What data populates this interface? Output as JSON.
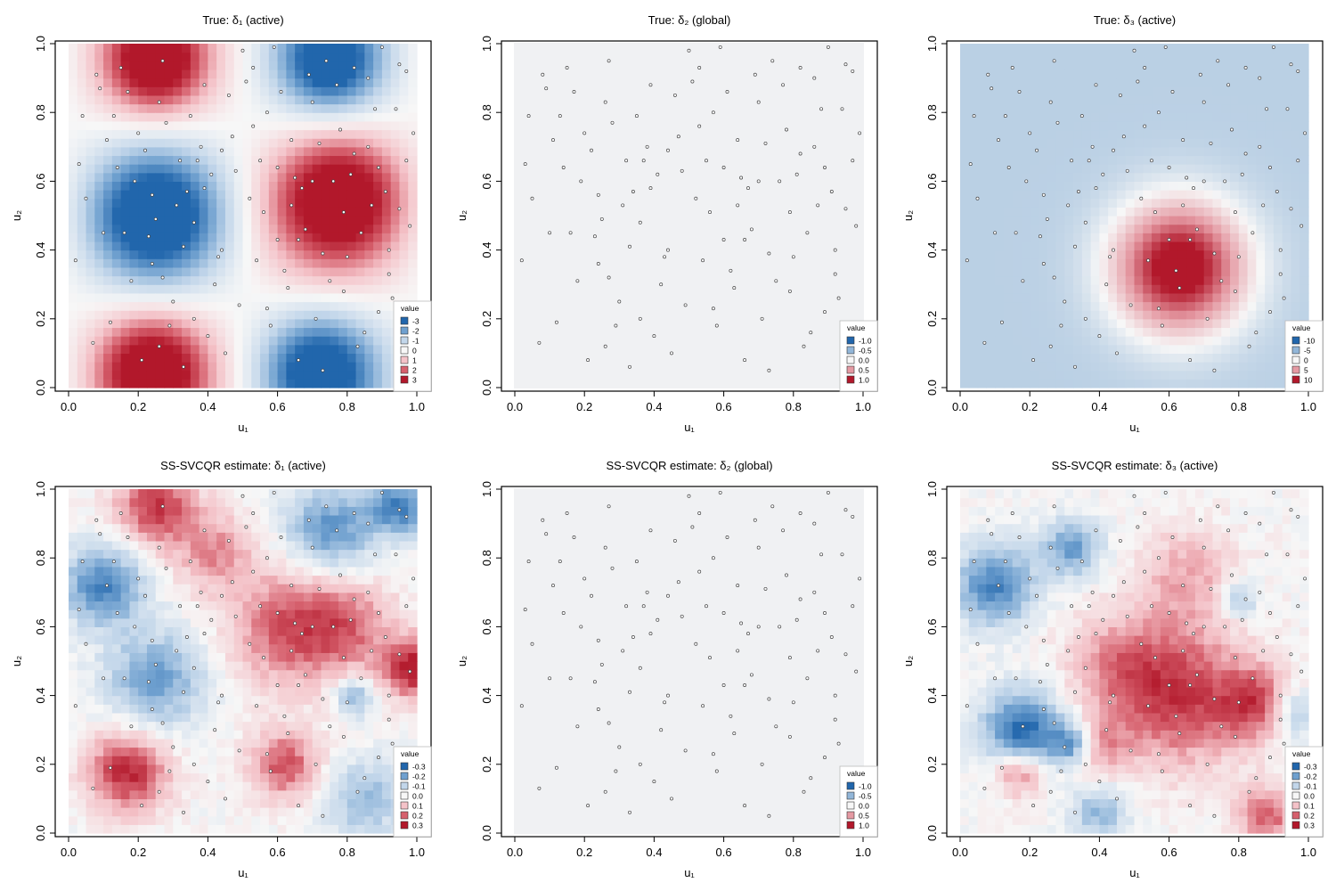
{
  "chart_data": [
    {
      "type": "heatmap",
      "title": "True:   δ₁ (active)",
      "xlabel": "u₁",
      "ylabel": "u₂",
      "xlim": [
        0,
        1
      ],
      "ylim": [
        0,
        1
      ],
      "xticks": [
        "0.0",
        "0.2",
        "0.4",
        "0.6",
        "0.8",
        "1.0"
      ],
      "yticks": [
        "0.0",
        "0.2",
        "0.4",
        "0.6",
        "0.8",
        "1.0"
      ],
      "legend": {
        "title": "value",
        "position": "bottom-right",
        "labels": [
          "-3",
          "-2",
          "-1",
          "0",
          "1",
          "2",
          "3"
        ]
      },
      "colors": [
        "#2166ac",
        "#6fa0cf",
        "#c2d6ea",
        "#f7f7f7",
        "#f4c2c8",
        "#d6606d",
        "#b2182b"
      ],
      "surface": {
        "kind": "checker",
        "amplitude": 3,
        "bumps": [
          {
            "x": 0.25,
            "y": 0.95,
            "a": 3.2,
            "s": 0.09
          },
          {
            "x": 0.78,
            "y": 0.55,
            "a": 3.2,
            "s": 0.12
          },
          {
            "x": 0.24,
            "y": 0.05,
            "a": 3.2,
            "s": 0.1
          },
          {
            "x": 0.72,
            "y": 0.05,
            "a": -3.0,
            "s": 0.1
          },
          {
            "x": 0.25,
            "y": 0.5,
            "a": -3.2,
            "s": 0.12
          },
          {
            "x": 0.75,
            "y": 0.95,
            "a": -3.0,
            "s": 0.09
          }
        ]
      }
    },
    {
      "type": "heatmap",
      "title": "True:   δ₂ (global)",
      "xlabel": "u₁",
      "ylabel": "u₂",
      "xlim": [
        0,
        1
      ],
      "ylim": [
        0,
        1
      ],
      "xticks": [
        "0.0",
        "0.2",
        "0.4",
        "0.6",
        "0.8",
        "1.0"
      ],
      "yticks": [
        "0.0",
        "0.2",
        "0.4",
        "0.6",
        "0.8",
        "1.0"
      ],
      "legend": {
        "title": "value",
        "position": "bottom-right",
        "labels": [
          "-1.0",
          "-0.5",
          "0.0",
          "0.5",
          "1.0"
        ]
      },
      "colors": [
        "#2166ac",
        "#92b6d8",
        "#f7f7f7",
        "#e59aa3",
        "#b2182b"
      ],
      "surface": {
        "kind": "constant",
        "fill": "#f0f1f3"
      }
    },
    {
      "type": "heatmap",
      "title": "True:   δ₃ (active)",
      "xlabel": "u₁",
      "ylabel": "u₂",
      "xlim": [
        0,
        1
      ],
      "ylim": [
        0,
        1
      ],
      "xticks": [
        "0.0",
        "0.2",
        "0.4",
        "0.6",
        "0.8",
        "1.0"
      ],
      "yticks": [
        "0.0",
        "0.2",
        "0.4",
        "0.6",
        "0.8",
        "1.0"
      ],
      "legend": {
        "title": "value",
        "position": "bottom-right",
        "labels": [
          "-10",
          "-5",
          "0",
          "5",
          "10"
        ]
      },
      "colors": [
        "#2166ac",
        "#92b6d8",
        "#f7f7f7",
        "#e59aa3",
        "#b2182b"
      ],
      "surface": {
        "kind": "bumps",
        "base": -3,
        "amplitude": 10,
        "bumps": [
          {
            "x": 0.63,
            "y": 0.35,
            "a": 15,
            "s": 0.13
          }
        ]
      }
    },
    {
      "type": "heatmap",
      "title": "SS-SVCQR estimate:   δ₁ (active)",
      "xlabel": "u₁",
      "ylabel": "u₂",
      "xlim": [
        0,
        1
      ],
      "ylim": [
        0,
        1
      ],
      "xticks": [
        "0.0",
        "0.2",
        "0.4",
        "0.6",
        "0.8",
        "1.0"
      ],
      "yticks": [
        "0.0",
        "0.2",
        "0.4",
        "0.6",
        "0.8",
        "1.0"
      ],
      "legend": {
        "title": "value",
        "position": "bottom-right",
        "labels": [
          "-0.3",
          "-0.2",
          "-0.1",
          "0.0",
          "0.1",
          "0.2",
          "0.3"
        ]
      },
      "colors": [
        "#2166ac",
        "#6fa0cf",
        "#c2d6ea",
        "#f7f7f7",
        "#f4c2c8",
        "#d6606d",
        "#b2182b"
      ],
      "surface": {
        "kind": "bumps",
        "base": 0,
        "amplitude": 0.3,
        "noise": 0.05,
        "bumps": [
          {
            "x": 0.25,
            "y": 0.95,
            "a": 0.25,
            "s": 0.08
          },
          {
            "x": 0.17,
            "y": 0.18,
            "a": 0.28,
            "s": 0.08
          },
          {
            "x": 0.62,
            "y": 0.2,
            "a": 0.22,
            "s": 0.07
          },
          {
            "x": 0.63,
            "y": 0.6,
            "a": 0.2,
            "s": 0.12
          },
          {
            "x": 0.99,
            "y": 0.48,
            "a": 0.3,
            "s": 0.06
          },
          {
            "x": 0.42,
            "y": 0.82,
            "a": 0.15,
            "s": 0.08
          },
          {
            "x": 0.8,
            "y": 0.6,
            "a": 0.15,
            "s": 0.1
          },
          {
            "x": 0.1,
            "y": 0.72,
            "a": -0.25,
            "s": 0.08
          },
          {
            "x": 0.25,
            "y": 0.45,
            "a": -0.2,
            "s": 0.1
          },
          {
            "x": 0.75,
            "y": 0.88,
            "a": -0.22,
            "s": 0.09
          },
          {
            "x": 0.85,
            "y": 0.1,
            "a": -0.15,
            "s": 0.08
          },
          {
            "x": 0.95,
            "y": 0.95,
            "a": -0.25,
            "s": 0.06
          },
          {
            "x": 0.82,
            "y": 0.4,
            "a": -0.18,
            "s": 0.04
          }
        ]
      }
    },
    {
      "type": "heatmap",
      "title": "SS-SVCQR estimate:   δ₂ (global)",
      "xlabel": "u₁",
      "ylabel": "u₂",
      "xlim": [
        0,
        1
      ],
      "ylim": [
        0,
        1
      ],
      "xticks": [
        "0.0",
        "0.2",
        "0.4",
        "0.6",
        "0.8",
        "1.0"
      ],
      "yticks": [
        "0.0",
        "0.2",
        "0.4",
        "0.6",
        "0.8",
        "1.0"
      ],
      "legend": {
        "title": "value",
        "position": "bottom-right",
        "labels": [
          "-1.0",
          "-0.5",
          "0.0",
          "0.5",
          "1.0"
        ]
      },
      "colors": [
        "#2166ac",
        "#92b6d8",
        "#f7f7f7",
        "#e59aa3",
        "#b2182b"
      ],
      "surface": {
        "kind": "constant",
        "fill": "#f0f1f3"
      }
    },
    {
      "type": "heatmap",
      "title": "SS-SVCQR estimate:   δ₃ (active)",
      "xlabel": "u₁",
      "ylabel": "u₂",
      "xlim": [
        0,
        1
      ],
      "ylim": [
        0,
        1
      ],
      "xticks": [
        "0.0",
        "0.2",
        "0.4",
        "0.6",
        "0.8",
        "1.0"
      ],
      "yticks": [
        "0.0",
        "0.2",
        "0.4",
        "0.6",
        "0.8",
        "1.0"
      ],
      "legend": {
        "title": "value",
        "position": "bottom-right",
        "labels": [
          "-0.3",
          "-0.2",
          "-0.1",
          "0.0",
          "0.1",
          "0.2",
          "0.3"
        ]
      },
      "colors": [
        "#2166ac",
        "#6fa0cf",
        "#c2d6ea",
        "#f7f7f7",
        "#f4c2c8",
        "#d6606d",
        "#b2182b"
      ],
      "surface": {
        "kind": "bumps",
        "base": 0,
        "amplitude": 0.3,
        "noise": 0.05,
        "bumps": [
          {
            "x": 0.63,
            "y": 0.4,
            "a": 0.25,
            "s": 0.14
          },
          {
            "x": 0.45,
            "y": 0.5,
            "a": 0.12,
            "s": 0.1
          },
          {
            "x": 0.85,
            "y": 0.38,
            "a": 0.2,
            "s": 0.07
          },
          {
            "x": 0.65,
            "y": 0.75,
            "a": 0.12,
            "s": 0.1
          },
          {
            "x": 0.17,
            "y": 0.18,
            "a": 0.2,
            "s": 0.05
          },
          {
            "x": 0.88,
            "y": 0.05,
            "a": 0.2,
            "s": 0.06
          },
          {
            "x": 0.4,
            "y": 0.25,
            "a": 0.12,
            "s": 0.06
          },
          {
            "x": 0.1,
            "y": 0.72,
            "a": -0.25,
            "s": 0.08
          },
          {
            "x": 0.18,
            "y": 0.3,
            "a": -0.3,
            "s": 0.08
          },
          {
            "x": 0.32,
            "y": 0.26,
            "a": -0.22,
            "s": 0.04
          },
          {
            "x": 0.32,
            "y": 0.83,
            "a": -0.2,
            "s": 0.06
          },
          {
            "x": 0.4,
            "y": 0.06,
            "a": -0.15,
            "s": 0.06
          },
          {
            "x": 0.8,
            "y": 0.68,
            "a": -0.15,
            "s": 0.04
          },
          {
            "x": 0.96,
            "y": 0.35,
            "a": -0.15,
            "s": 0.05
          }
        ]
      }
    }
  ],
  "points": [
    [
      0.04,
      0.79
    ],
    [
      0.11,
      0.72
    ],
    [
      0.16,
      0.45
    ],
    [
      0.24,
      0.56
    ],
    [
      0.25,
      0.49
    ],
    [
      0.27,
      0.32
    ],
    [
      0.29,
      0.18
    ],
    [
      0.33,
      0.41
    ],
    [
      0.37,
      0.66
    ],
    [
      0.39,
      0.58
    ],
    [
      0.43,
      0.38
    ],
    [
      0.46,
      0.85
    ],
    [
      0.5,
      0.98
    ],
    [
      0.53,
      0.76
    ],
    [
      0.57,
      0.23
    ],
    [
      0.6,
      0.64
    ],
    [
      0.63,
      0.29
    ],
    [
      0.66,
      0.43
    ],
    [
      0.7,
      0.83
    ],
    [
      0.73,
      0.05
    ],
    [
      0.76,
      0.6
    ],
    [
      0.79,
      0.51
    ],
    [
      0.83,
      0.12
    ],
    [
      0.86,
      0.9
    ],
    [
      0.89,
      0.64
    ],
    [
      0.93,
      0.26
    ],
    [
      0.95,
      0.94
    ],
    [
      0.98,
      0.47
    ],
    [
      0.07,
      0.13
    ],
    [
      0.08,
      0.91
    ],
    [
      0.13,
      0.79
    ],
    [
      0.18,
      0.31
    ],
    [
      0.2,
      0.74
    ],
    [
      0.22,
      0.69
    ],
    [
      0.24,
      0.36
    ],
    [
      0.26,
      0.83
    ],
    [
      0.31,
      0.53
    ],
    [
      0.33,
      0.06
    ],
    [
      0.35,
      0.79
    ],
    [
      0.38,
      0.7
    ],
    [
      0.4,
      0.15
    ],
    [
      0.41,
      0.62
    ],
    [
      0.44,
      0.4
    ],
    [
      0.48,
      0.63
    ],
    [
      0.52,
      0.55
    ],
    [
      0.55,
      0.66
    ],
    [
      0.56,
      0.51
    ],
    [
      0.59,
      0.99
    ],
    [
      0.61,
      0.86
    ],
    [
      0.62,
      0.34
    ],
    [
      0.64,
      0.72
    ],
    [
      0.67,
      0.58
    ],
    [
      0.69,
      0.91
    ],
    [
      0.72,
      0.71
    ],
    [
      0.74,
      0.95
    ],
    [
      0.77,
      0.88
    ],
    [
      0.8,
      0.38
    ],
    [
      0.82,
      0.68
    ],
    [
      0.85,
      0.16
    ],
    [
      0.87,
      0.53
    ],
    [
      0.9,
      0.99
    ],
    [
      0.92,
      0.4
    ],
    [
      0.94,
      0.81
    ],
    [
      0.97,
      0.66
    ],
    [
      0.02,
      0.37
    ],
    [
      0.05,
      0.55
    ],
    [
      0.09,
      0.87
    ],
    [
      0.12,
      0.19
    ],
    [
      0.15,
      0.93
    ],
    [
      0.19,
      0.6
    ],
    [
      0.21,
      0.08
    ],
    [
      0.23,
      0.44
    ],
    [
      0.28,
      0.77
    ],
    [
      0.3,
      0.25
    ],
    [
      0.32,
      0.66
    ],
    [
      0.36,
      0.48
    ],
    [
      0.42,
      0.3
    ],
    [
      0.45,
      0.1
    ],
    [
      0.47,
      0.73
    ],
    [
      0.51,
      0.89
    ],
    [
      0.54,
      0.37
    ],
    [
      0.58,
      0.18
    ],
    [
      0.65,
      0.61
    ],
    [
      0.68,
      0.46
    ],
    [
      0.71,
      0.2
    ],
    [
      0.75,
      0.31
    ],
    [
      0.78,
      0.75
    ],
    [
      0.81,
      0.62
    ],
    [
      0.84,
      0.45
    ],
    [
      0.88,
      0.81
    ],
    [
      0.91,
      0.57
    ],
    [
      0.96,
      0.11
    ],
    [
      0.99,
      0.74
    ],
    [
      0.14,
      0.64
    ],
    [
      0.17,
      0.86
    ],
    [
      0.26,
      0.12
    ],
    [
      0.34,
      0.57
    ],
    [
      0.39,
      0.88
    ],
    [
      0.49,
      0.24
    ],
    [
      0.53,
      0.93
    ],
    [
      0.6,
      0.43
    ],
    [
      0.66,
      0.08
    ],
    [
      0.73,
      0.39
    ],
    [
      0.79,
      0.28
    ],
    [
      0.86,
      0.7
    ],
    [
      0.92,
      0.33
    ],
    [
      0.97,
      0.92
    ],
    [
      0.03,
      0.65
    ],
    [
      0.1,
      0.45
    ],
    [
      0.27,
      0.95
    ],
    [
      0.36,
      0.2
    ],
    [
      0.44,
      0.69
    ],
    [
      0.57,
      0.8
    ],
    [
      0.64,
      0.53
    ],
    [
      0.7,
      0.6
    ],
    [
      0.82,
      0.93
    ],
    [
      0.89,
      0.22
    ],
    [
      0.95,
      0.52
    ]
  ],
  "colors": {
    "point_fill": "#ffffff",
    "point_stroke": "#444444",
    "axis": "#000000"
  }
}
